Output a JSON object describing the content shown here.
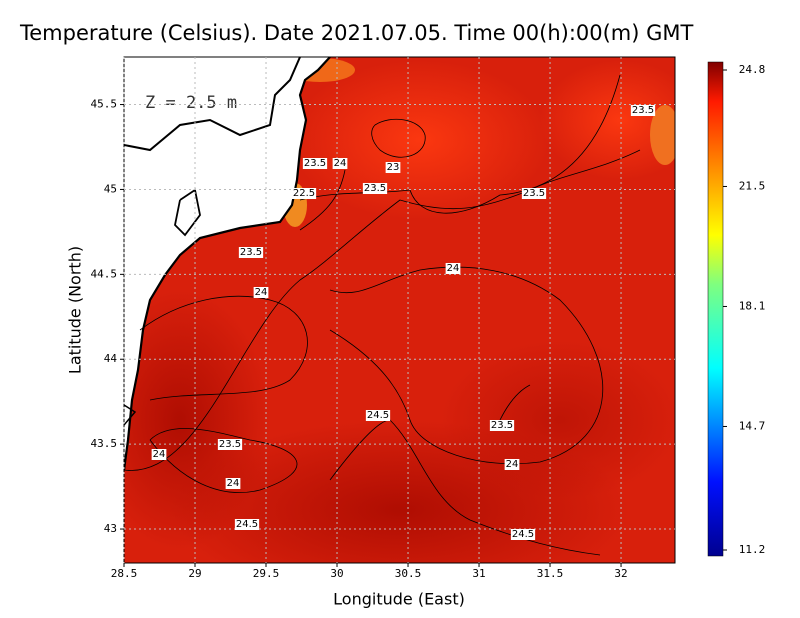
{
  "title": "Temperature (Celsius). Date 2021.07.05. Time 00(h):00(m) GMT",
  "annotation": "Z = 2.5 m",
  "x_axis": {
    "label": "Longitude (East)",
    "lim": [
      28.5,
      32.38
    ],
    "ticks": [
      28.5,
      29,
      29.5,
      30,
      30.5,
      31,
      31.5,
      32
    ]
  },
  "y_axis": {
    "label": "Latitude (North)",
    "lim": [
      42.8,
      45.78
    ],
    "ticks": [
      43,
      43.5,
      44,
      44.5,
      45,
      45.5
    ]
  },
  "colorbar": {
    "lim": [
      11.2,
      24.8
    ],
    "ticks": [
      24.8,
      21.5,
      18.1,
      14.7,
      11.2
    ]
  },
  "contour_labels": [
    23.5,
    23.5,
    24,
    23,
    23.5,
    23.5,
    22.5,
    23.5,
    24,
    24,
    24.5,
    23.5,
    24,
    23.5,
    24,
    24,
    24.5,
    24.5
  ]
}
